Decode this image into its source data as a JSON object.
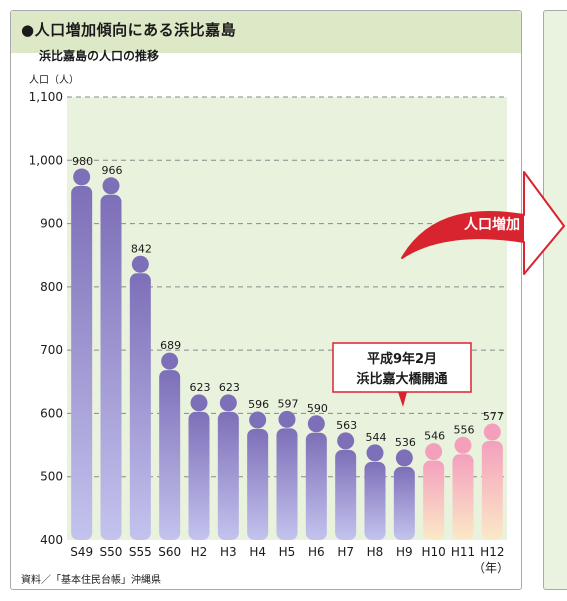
{
  "title": "●人口増加傾向にある浜比嘉島",
  "subtitle": "浜比嘉島の人口の推移",
  "source": "資料／「基本住民台帳」沖縄県",
  "annotation": {
    "line1": "平成9年2月",
    "line2": "浜比嘉大橋開通"
  },
  "arrow_label": "人口増加",
  "colors": {
    "header_band": "#dde8c6",
    "plot_bg": "#e9f2dd",
    "bar_purple_top": "#7d6fb8",
    "bar_purple_bottom": "#c4c3ee",
    "bar_pink_top": "#f4a0bd",
    "bar_pink_bottom": "#fbe9c7",
    "callout_border": "#d8242f",
    "arrow_red": "#d8242f"
  },
  "chart_data": {
    "type": "bar",
    "ylabel": "人口（人）",
    "xunit": "（年）",
    "ylim": [
      400,
      1100
    ],
    "yticks": [
      "400",
      "500",
      "600",
      "700",
      "800",
      "900",
      "1,000",
      "1,100"
    ],
    "categories": [
      "S49",
      "S50",
      "S55",
      "S60",
      "H2",
      "H3",
      "H4",
      "H5",
      "H6",
      "H7",
      "H8",
      "H9",
      "H10",
      "H11",
      "H12"
    ],
    "values": [
      980,
      966,
      842,
      689,
      623,
      623,
      596,
      597,
      590,
      563,
      544,
      536,
      546,
      556,
      577
    ],
    "value_labels": [
      "980",
      "966",
      "842",
      "689",
      "623",
      "623",
      "596",
      "597",
      "590",
      "563",
      "544",
      "536",
      "546",
      "556",
      "577"
    ],
    "highlight_from_index": 12,
    "grid": "dashed"
  }
}
